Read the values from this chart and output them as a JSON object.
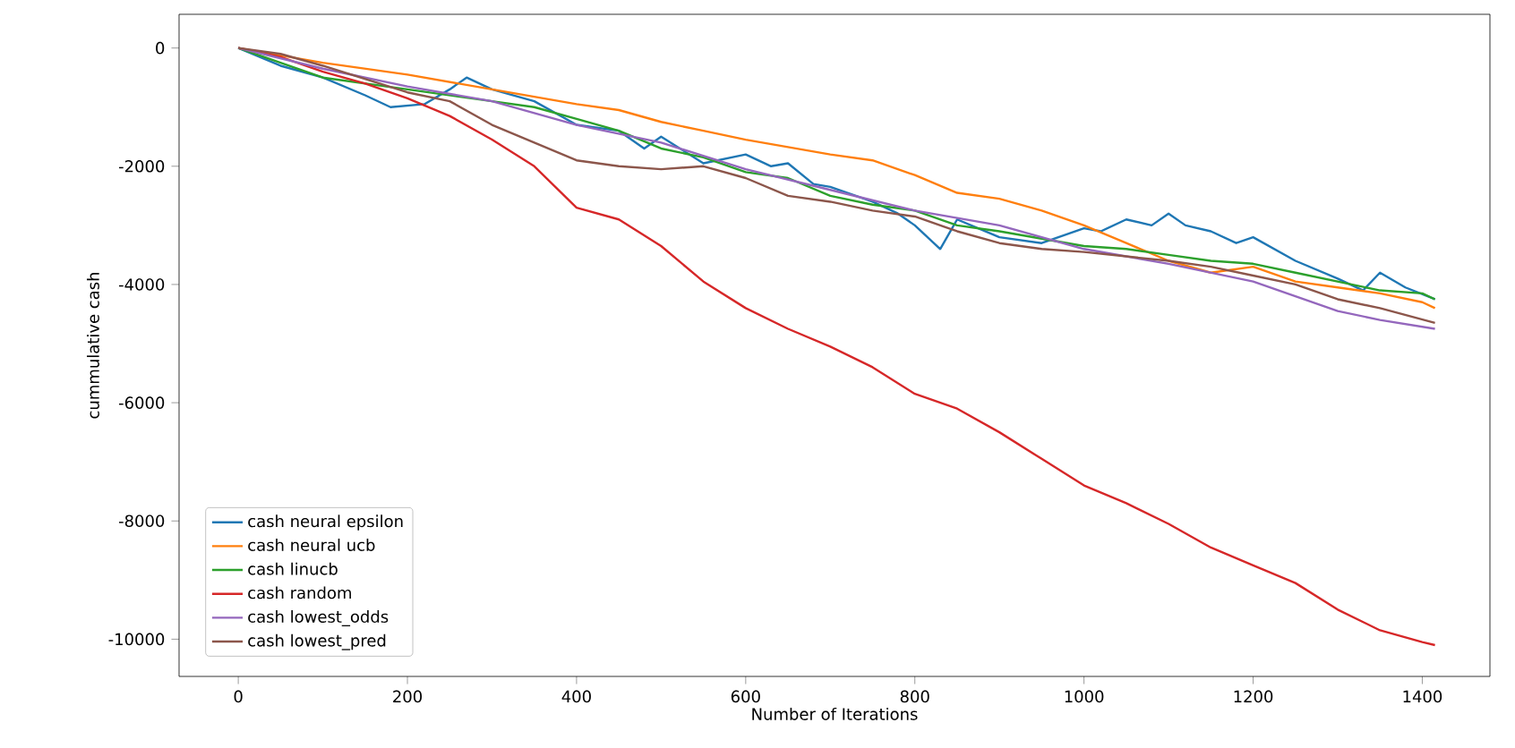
{
  "chart_data": {
    "type": "line",
    "xlabel": "Number of Iterations",
    "ylabel": "cummulative cash",
    "xlim": [
      -70,
      1480
    ],
    "ylim": [
      -10630,
      570
    ],
    "xticks": [
      0,
      200,
      400,
      600,
      800,
      1000,
      1200,
      1400
    ],
    "yticks": [
      -10000,
      -8000,
      -6000,
      -4000,
      -2000,
      0
    ],
    "legend": "bottom left",
    "series": [
      {
        "name": "cash neural epsilon",
        "color": "#1f77b4",
        "x": [
          0,
          50,
          100,
          150,
          180,
          220,
          250,
          270,
          300,
          350,
          400,
          450,
          480,
          500,
          550,
          600,
          630,
          650,
          680,
          700,
          750,
          780,
          800,
          830,
          850,
          900,
          950,
          1000,
          1020,
          1050,
          1080,
          1100,
          1120,
          1150,
          1180,
          1200,
          1250,
          1300,
          1330,
          1350,
          1380,
          1415
        ],
        "values": [
          0,
          -300,
          -500,
          -800,
          -1000,
          -950,
          -700,
          -500,
          -700,
          -900,
          -1300,
          -1400,
          -1700,
          -1500,
          -1950,
          -1800,
          -2000,
          -1950,
          -2300,
          -2350,
          -2600,
          -2800,
          -3000,
          -3400,
          -2900,
          -3200,
          -3300,
          -3050,
          -3100,
          -2900,
          -3000,
          -2800,
          -3000,
          -3100,
          -3300,
          -3200,
          -3600,
          -3900,
          -4100,
          -3800,
          -4050,
          -4250
        ]
      },
      {
        "name": "cash neural ucb",
        "color": "#ff7f0e",
        "x": [
          0,
          100,
          200,
          300,
          400,
          450,
          500,
          550,
          600,
          700,
          750,
          800,
          850,
          900,
          950,
          1000,
          1050,
          1100,
          1150,
          1200,
          1250,
          1300,
          1350,
          1400,
          1415
        ],
        "values": [
          0,
          -250,
          -450,
          -700,
          -950,
          -1050,
          -1250,
          -1400,
          -1550,
          -1800,
          -1900,
          -2150,
          -2450,
          -2550,
          -2750,
          -3000,
          -3300,
          -3600,
          -3800,
          -3700,
          -3950,
          -4050,
          -4150,
          -4300,
          -4400
        ]
      },
      {
        "name": "cash linucb",
        "color": "#2ca02c",
        "x": [
          0,
          100,
          200,
          300,
          350,
          400,
          450,
          500,
          550,
          600,
          650,
          700,
          750,
          800,
          850,
          900,
          1000,
          1050,
          1100,
          1150,
          1200,
          1250,
          1300,
          1350,
          1400,
          1415
        ],
        "values": [
          0,
          -500,
          -700,
          -900,
          -1000,
          -1200,
          -1400,
          -1700,
          -1850,
          -2100,
          -2200,
          -2500,
          -2650,
          -2750,
          -3000,
          -3100,
          -3350,
          -3400,
          -3500,
          -3600,
          -3650,
          -3800,
          -3950,
          -4100,
          -4150,
          -4250
        ]
      },
      {
        "name": "cash random",
        "color": "#d62728",
        "x": [
          0,
          50,
          100,
          150,
          200,
          250,
          300,
          350,
          400,
          450,
          500,
          550,
          600,
          650,
          700,
          750,
          800,
          850,
          900,
          950,
          1000,
          1050,
          1100,
          1150,
          1200,
          1250,
          1300,
          1350,
          1400,
          1415
        ],
        "values": [
          0,
          -150,
          -400,
          -600,
          -850,
          -1150,
          -1550,
          -2000,
          -2700,
          -2900,
          -3350,
          -3950,
          -4400,
          -4750,
          -5050,
          -5400,
          -5850,
          -6100,
          -6500,
          -6950,
          -7400,
          -7700,
          -8050,
          -8450,
          -8750,
          -9050,
          -9500,
          -9850,
          -10050,
          -10100
        ]
      },
      {
        "name": "cash lowest_odds",
        "color": "#9467bd",
        "x": [
          0,
          100,
          200,
          300,
          400,
          500,
          600,
          700,
          800,
          900,
          1000,
          1100,
          1200,
          1300,
          1350,
          1415
        ],
        "values": [
          0,
          -350,
          -650,
          -900,
          -1300,
          -1600,
          -2050,
          -2400,
          -2750,
          -3000,
          -3400,
          -3650,
          -3950,
          -4450,
          -4600,
          -4750
        ]
      },
      {
        "name": "cash lowest_pred",
        "color": "#8c564b",
        "x": [
          0,
          50,
          100,
          200,
          250,
          300,
          350,
          400,
          450,
          500,
          550,
          600,
          650,
          700,
          750,
          800,
          850,
          900,
          950,
          1000,
          1100,
          1150,
          1200,
          1250,
          1300,
          1350,
          1415
        ],
        "values": [
          0,
          -100,
          -300,
          -750,
          -900,
          -1300,
          -1600,
          -1900,
          -2000,
          -2050,
          -2000,
          -2200,
          -2500,
          -2600,
          -2750,
          -2850,
          -3100,
          -3300,
          -3400,
          -3450,
          -3600,
          -3700,
          -3850,
          -4000,
          -4250,
          -4400,
          -4650
        ]
      }
    ]
  }
}
